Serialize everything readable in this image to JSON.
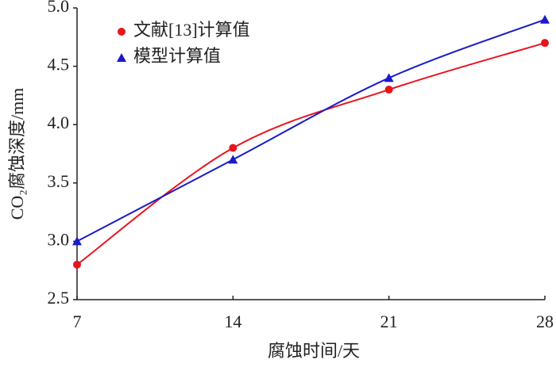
{
  "chart_data": {
    "type": "line",
    "x_label": "腐蚀时间/天",
    "y_label": "CO₂腐蚀深度/mm",
    "x": [
      7,
      14,
      21,
      28
    ],
    "series": [
      {
        "name": "文献[13]计算值",
        "color": "#e8141c",
        "marker": "circle",
        "values": [
          2.8,
          3.8,
          4.3,
          4.7
        ]
      },
      {
        "name": "模型计算值",
        "color": "#1a1ac8",
        "marker": "triangle",
        "values": [
          3.0,
          3.7,
          4.4,
          4.9
        ]
      }
    ],
    "xlim": [
      7,
      28
    ],
    "xticks": [
      7,
      14,
      21,
      28
    ],
    "ylim": [
      2.5,
      5.0
    ],
    "yticks": [
      2.5,
      {
        "value": 3,
        "label": "3.0"
      },
      3.5,
      {
        "value": 4,
        "label": "4.0"
      },
      4.5,
      {
        "value": 5,
        "label": "5.0"
      }
    ],
    "grid": false,
    "legend": "upper left"
  }
}
